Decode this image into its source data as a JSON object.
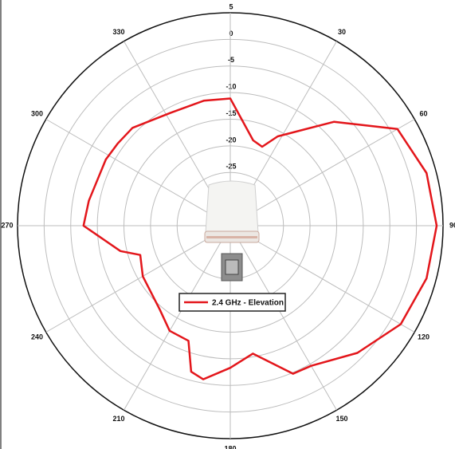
{
  "chart_data": {
    "type": "polar",
    "legend": "2.4 GHz - Elevation",
    "color": "#e3161b",
    "theta": [
      0,
      15,
      22,
      28,
      45,
      60,
      75,
      90,
      105,
      120,
      135,
      150,
      157,
      170,
      180,
      190,
      195,
      200,
      210,
      220,
      240,
      252,
      257,
      270,
      280,
      298,
      306,
      315,
      332,
      348
    ],
    "values": [
      -11.1,
      -18.4,
      -19,
      -16,
      -7.4,
      1.3,
      3.2,
      3.8,
      3.2,
      2,
      -1.2,
      -4.6,
      -4.8,
      -10.6,
      -8.3,
      -5.7,
      -6.6,
      -12,
      -12.2,
      -14.4,
      -16,
      -17.2,
      -13.8,
      -7.4,
      -8,
      -8.5,
      -8.8,
      -9,
      -11,
      -11
    ],
    "rlim": [
      -35,
      5
    ],
    "rticks": [
      -25,
      -20,
      -15,
      -10,
      -5,
      0,
      5
    ],
    "thetaticks": [
      30,
      60,
      90,
      120,
      150,
      180,
      210,
      240,
      270,
      300,
      330
    ]
  }
}
